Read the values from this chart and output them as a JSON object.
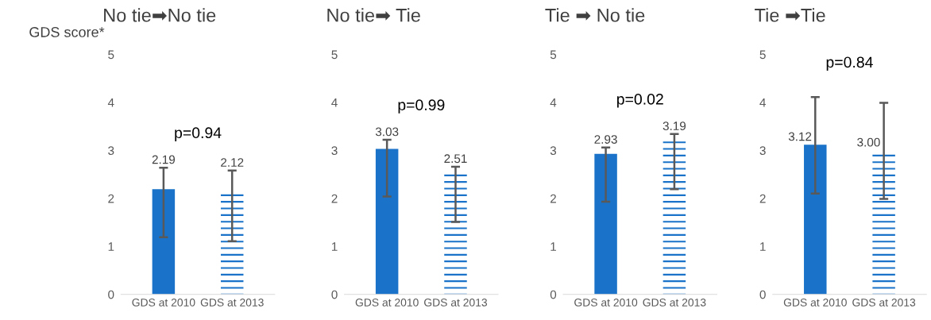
{
  "chart_data": [
    {
      "type": "bar",
      "title": "No tie➡No tie",
      "ylabel": "GDS score*",
      "categories": [
        "GDS at 2010",
        "GDS at 2013"
      ],
      "values": [
        2.19,
        2.12
      ],
      "value_labels": [
        "2.19",
        "2.12"
      ],
      "errors": [
        [
          1.19,
          2.64
        ],
        [
          1.11,
          2.58
        ]
      ],
      "colors": [
        "#1a73c8",
        "#1a73c8"
      ],
      "ylim": [
        0,
        5
      ],
      "yticks": [
        0,
        1,
        2,
        3,
        4,
        5
      ],
      "annotations": [
        "p=0.94"
      ]
    },
    {
      "type": "bar",
      "title": "No tie➡ Tie",
      "categories": [
        "GDS at 2010",
        "GDS at 2013"
      ],
      "values": [
        3.03,
        2.51
      ],
      "value_labels": [
        "3.03",
        "2.51"
      ],
      "errors": [
        [
          2.04,
          3.22
        ],
        [
          1.51,
          2.66
        ]
      ],
      "colors": [
        "#1a73c8",
        "#1a73c8"
      ],
      "ylim": [
        0,
        5
      ],
      "yticks": [
        0,
        1,
        2,
        3,
        4,
        5
      ],
      "annotations": [
        "p=0.99"
      ]
    },
    {
      "type": "bar",
      "title": "Tie ➡ No tie",
      "categories": [
        "GDS at 2010",
        "GDS at 2013"
      ],
      "values": [
        2.93,
        3.19
      ],
      "value_labels": [
        "2.93",
        "3.19"
      ],
      "errors": [
        [
          1.93,
          3.06
        ],
        [
          2.19,
          3.34
        ]
      ],
      "colors": [
        "#1a73c8",
        "#1a73c8"
      ],
      "ylim": [
        0,
        5
      ],
      "yticks": [
        0,
        1,
        2,
        3,
        4,
        5
      ],
      "annotations": [
        "p=0.02"
      ]
    },
    {
      "type": "bar",
      "title": "Tie ➡Tie",
      "categories": [
        "GDS at 2010",
        "GDS at 2013"
      ],
      "values": [
        3.12,
        3.0
      ],
      "value_labels": [
        "3.12",
        "3.00"
      ],
      "errors": [
        [
          2.1,
          4.11
        ],
        [
          1.99,
          3.99
        ]
      ],
      "colors": [
        "#1a73c8",
        "#1a73c8"
      ],
      "ylim": [
        0,
        5
      ],
      "yticks": [
        0,
        1,
        2,
        3,
        4,
        5
      ],
      "annotations": [
        "p=0.84"
      ]
    }
  ]
}
